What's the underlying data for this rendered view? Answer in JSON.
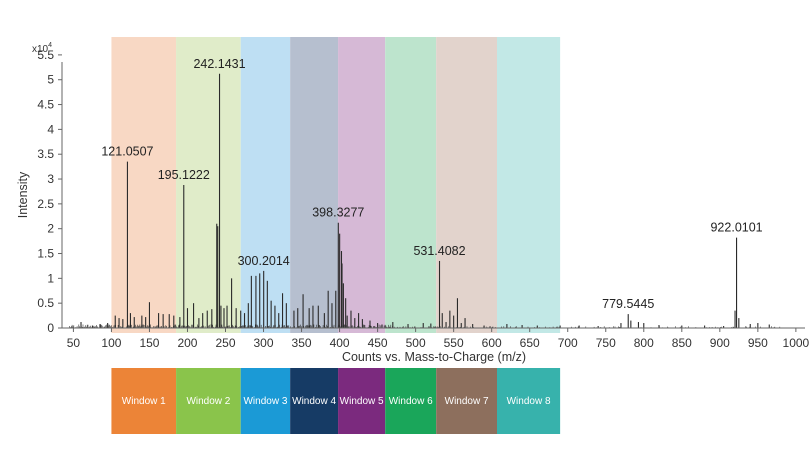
{
  "chart_data": {
    "type": "bar",
    "title": "",
    "xlabel": "Counts vs. Mass-to-Charge (m/z)",
    "ylabel": "Intensity",
    "y_exponent_label": "x10",
    "y_exponent_power": "4",
    "x_ticks": [
      "50",
      "100",
      "150",
      "200",
      "250",
      "300",
      "350",
      "400",
      "450",
      "500",
      "550",
      "600",
      "650",
      "700",
      "750",
      "800",
      "850",
      "900",
      "950",
      "1000"
    ],
    "y_ticks": [
      "0",
      "0.5",
      "1",
      "1.5",
      "2",
      "2.5",
      "3",
      "3.5",
      "4",
      "4.5",
      "5",
      "5.5"
    ],
    "xlim": [
      35,
      1012
    ],
    "ylim": [
      0,
      5.8
    ],
    "grid": false,
    "windows": [
      {
        "name": "Window 1",
        "start": 100,
        "end": 185,
        "band_color": "#f8d8c4",
        "box_color": "#ec8437"
      },
      {
        "name": "Window 2",
        "start": 185,
        "end": 270,
        "band_color": "#e0ecc9",
        "box_color": "#8ac44b"
      },
      {
        "name": "Window 3",
        "start": 270,
        "end": 335,
        "band_color": "#bedff3",
        "box_color": "#1b9ad6"
      },
      {
        "name": "Window 4",
        "start": 335,
        "end": 398,
        "band_color": "#b6bfcf",
        "box_color": "#163b65"
      },
      {
        "name": "Window 5",
        "start": 398,
        "end": 460,
        "band_color": "#d6b9d6",
        "box_color": "#7b2a7e"
      },
      {
        "name": "Window 6",
        "start": 460,
        "end": 527,
        "band_color": "#bde4cd",
        "box_color": "#1aa65a"
      },
      {
        "name": "Window 7",
        "start": 527,
        "end": 607,
        "band_color": "#e2d3cc",
        "box_color": "#8d6f5d"
      },
      {
        "name": "Window 8",
        "start": 607,
        "end": 690,
        "band_color": "#c2e8e6",
        "box_color": "#37b2ac"
      }
    ],
    "annotations": [
      {
        "text": "121.0507",
        "x": 121.0507,
        "y": 3.35
      },
      {
        "text": "195.1222",
        "x": 195.1222,
        "y": 2.88
      },
      {
        "text": "242.1431",
        "x": 242.1431,
        "y": 5.12
      },
      {
        "text": "300.2014",
        "x": 300.2014,
        "y": 1.15
      },
      {
        "text": "398.3277",
        "x": 398.3277,
        "y": 2.12
      },
      {
        "text": "531.4082",
        "x": 531.4082,
        "y": 1.35
      },
      {
        "text": "779.5445",
        "x": 779.5445,
        "y": 0.28
      },
      {
        "text": "922.0101",
        "x": 922.0101,
        "y": 1.82
      }
    ],
    "series": [
      {
        "x": [
          121.0507,
          195.1222,
          242.1431,
          300.2014,
          398.3277,
          531.4082,
          779.5445,
          922.0101,
          238.5,
          239.8,
          244.0,
          258.0,
          402.5,
          403.2,
          400.1,
          395.0,
          405.0,
          555.0,
          290.0,
          284.0,
          295.0,
          305.0,
          325.0,
          352.0,
          385.0,
          372.0,
          310.0,
          280.0,
          150.0,
          130.0,
          162.0,
          176.0,
          208.0,
          215.0,
          226.0,
          252.0,
          264.0,
          320.0,
          340.0,
          360.0,
          380.0,
          390.0,
          410.0,
          420.0,
          430.0,
          440.0,
          450.0,
          470.0,
          490.0,
          510.0,
          520.0,
          540.0,
          560.0,
          575.0,
          590.0,
          620.0,
          640.0,
          660.0,
          690.0,
          715.0,
          740.0,
          770.0,
          783.0,
          793.0,
          800.0,
          820.0,
          850.0,
          880.0,
          905.0,
          920.0,
          925.0,
          940.0,
          950.0,
          965.0,
          60.0,
          75.0,
          85.0,
          95.0,
          105.0,
          110.0,
          115.0,
          125.0,
          140.0,
          145.0,
          168.0,
          182.0,
          190.0,
          200.0,
          220.0,
          232.0,
          248.0,
          270.0,
          275.0,
          315.0,
          330.0,
          345.0,
          365.0,
          408.0,
          415.0,
          425.0,
          535.0,
          545.0,
          550.0,
          565.0
        ],
        "values": [
          3.35,
          2.88,
          5.12,
          1.15,
          2.12,
          1.35,
          0.28,
          1.82,
          2.1,
          2.05,
          0.45,
          1.0,
          1.55,
          1.3,
          1.9,
          0.75,
          0.9,
          0.6,
          1.05,
          1.05,
          1.1,
          0.95,
          0.7,
          0.68,
          0.75,
          0.45,
          0.55,
          0.5,
          0.52,
          0.22,
          0.3,
          0.28,
          0.5,
          0.2,
          0.35,
          0.45,
          0.4,
          0.3,
          0.35,
          0.4,
          0.3,
          0.5,
          0.25,
          0.2,
          0.18,
          0.15,
          0.1,
          0.12,
          0.08,
          0.1,
          0.09,
          0.12,
          0.1,
          0.08,
          0.05,
          0.08,
          0.06,
          0.05,
          0.05,
          0.05,
          0.04,
          0.1,
          0.15,
          0.12,
          0.1,
          0.06,
          0.05,
          0.05,
          0.04,
          0.35,
          0.2,
          0.08,
          0.1,
          0.07,
          0.12,
          0.05,
          0.08,
          0.1,
          0.25,
          0.2,
          0.18,
          0.3,
          0.25,
          0.22,
          0.28,
          0.25,
          0.22,
          0.4,
          0.3,
          0.38,
          0.4,
          0.35,
          0.3,
          0.45,
          0.5,
          0.4,
          0.45,
          0.6,
          0.35,
          0.3,
          0.3,
          0.35,
          0.25,
          0.2
        ]
      }
    ]
  }
}
